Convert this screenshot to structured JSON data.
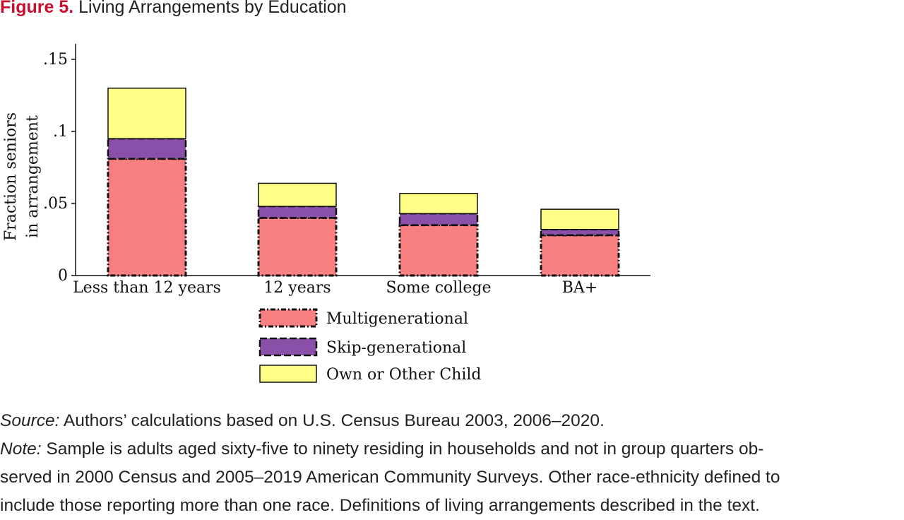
{
  "figure": {
    "label": "Figure 5.",
    "title": "Living Arrangements by Education"
  },
  "chart_data": {
    "type": "bar",
    "stacked": true,
    "ylabel_line1": "Fraction seniors",
    "ylabel_line2": "in arrangement",
    "xlabel": "",
    "ylim": [
      0,
      0.16
    ],
    "yticks": [
      {
        "value": 0,
        "label": "0"
      },
      {
        "value": 0.05,
        "label": ".05"
      },
      {
        "value": 0.1,
        "label": ".1"
      },
      {
        "value": 0.15,
        "label": ".15"
      }
    ],
    "categories": [
      "Less than 12 years",
      "12 years",
      "Some college",
      "BA+"
    ],
    "series": [
      {
        "name": "Multigenerational",
        "values": [
          0.081,
          0.04,
          0.035,
          0.028
        ],
        "color": "#f88080"
      },
      {
        "name": "Skip-generational",
        "values": [
          0.014,
          0.008,
          0.008,
          0.004
        ],
        "color": "#8a4fa8"
      },
      {
        "name": "Own or Other Child",
        "values": [
          0.035,
          0.016,
          0.014,
          0.014
        ],
        "color": "#ffff88"
      }
    ],
    "grid": false,
    "legend_position": "bottom"
  },
  "notes": {
    "source_label": "Source:",
    "source_text": " Authors’ calculations based on U.S. Census Bureau 2003, 2006–2020.",
    "note_label": "Note:",
    "note_line1": " Sample is adults aged sixty-five to ninety residing in households and not in group quarters ob-",
    "note_line2": "served in 2000 Census and 2005–2019 American Community Surveys. Other race-ethnicity defined to",
    "note_line3": "include those reporting more than one race. Definitions of living arrangements described in the text."
  }
}
